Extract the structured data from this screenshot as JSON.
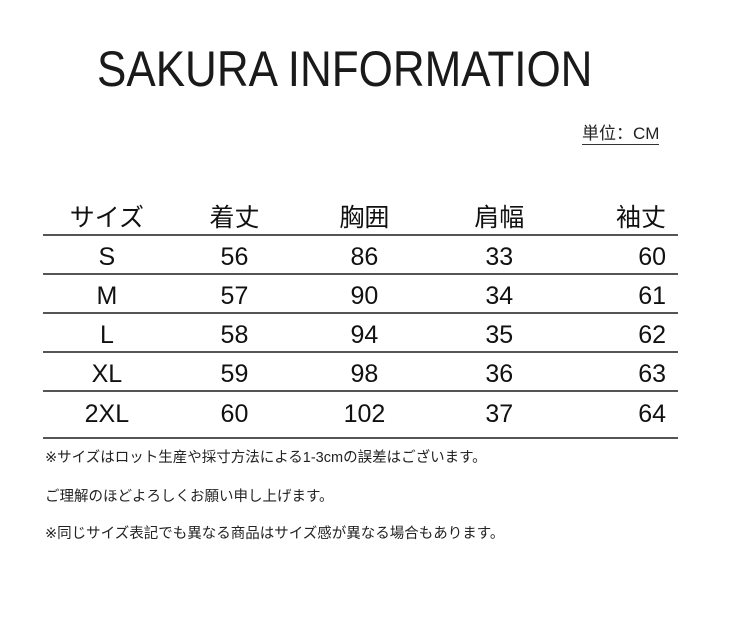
{
  "title": "SAKURA INFORMATION",
  "unit": "単位：CM",
  "table": {
    "headers": [
      "サイズ",
      "着丈",
      "胸囲",
      "肩幅",
      "袖丈"
    ],
    "rows": [
      [
        "S",
        "56",
        "86",
        "33",
        "60"
      ],
      [
        "M",
        "57",
        "90",
        "34",
        "61"
      ],
      [
        "L",
        "58",
        "94",
        "35",
        "62"
      ],
      [
        "XL",
        "59",
        "98",
        "36",
        "63"
      ],
      [
        "2XL",
        "60",
        "102",
        "37",
        "64"
      ]
    ]
  },
  "notes": [
    "※サイズはロット生産や採寸方法による1-3cmの誤差はございます。",
    "ご理解のほどよろしくお願い申し上げます。",
    "※同じサイズ表記でも異なる商品はサイズ感が異なる場合もあります。"
  ]
}
